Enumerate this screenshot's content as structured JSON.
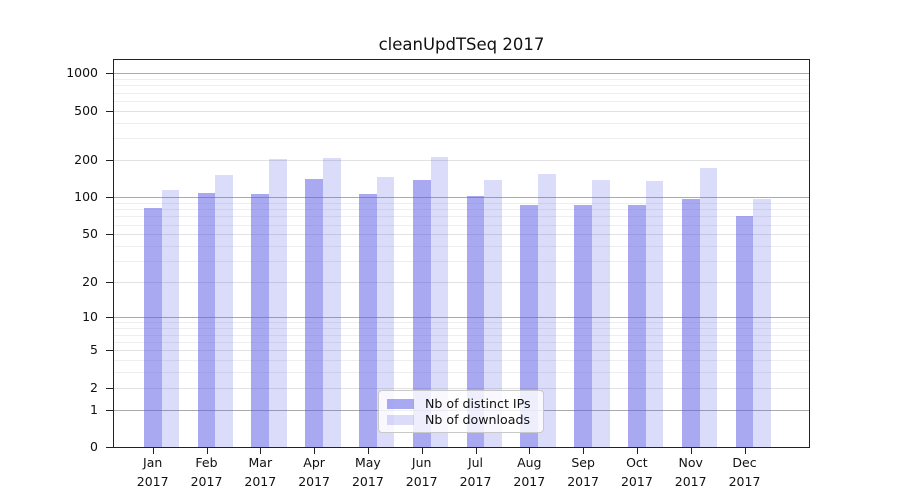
{
  "palette": {
    "bar_ips": "rgba(90,90,230,0.52)",
    "bar_downloads": "rgba(90,90,230,0.22)",
    "axis": "#222222",
    "grid_pow10": "#aaaaaa",
    "grid_major": "#e2e2e2",
    "grid_minor": "#eeeeee",
    "text": "#111111",
    "legend_border": "#c8c8c8",
    "legend_bg": "rgba(255,255,255,0.8)"
  },
  "chart_data": {
    "type": "bar",
    "title": "cleanUpdTSeq 2017",
    "scale": "log1p",
    "grid": "horizontal",
    "legend_position": "bottom-center",
    "categories": [
      "Jan 2017",
      "Feb 2017",
      "Mar 2017",
      "Apr 2017",
      "May 2017",
      "Jun 2017",
      "Jul 2017",
      "Aug 2017",
      "Sep 2017",
      "Oct 2017",
      "Nov 2017",
      "Dec 2017"
    ],
    "series": [
      {
        "name": "Nb of distinct IPs",
        "color": "rgba(90,90,230,0.52)",
        "values": [
          82,
          108,
          106,
          141,
          106,
          137,
          103,
          86,
          87,
          87,
          97,
          70
        ]
      },
      {
        "name": "Nb of downloads",
        "color": "rgba(90,90,230,0.22)",
        "values": [
          114,
          153,
          206,
          208,
          145,
          212,
          139,
          154,
          138,
          135,
          173,
          97
        ]
      }
    ],
    "y_ticks": [
      0,
      1,
      2,
      5,
      10,
      20,
      50,
      100,
      200,
      500,
      1000
    ],
    "y_minor_ticks": [
      3,
      4,
      6,
      7,
      8,
      9,
      30,
      40,
      60,
      70,
      80,
      90,
      300,
      400,
      600,
      700,
      800,
      900
    ],
    "ylim": [
      0,
      1070
    ],
    "xlabel": "",
    "ylabel": ""
  }
}
